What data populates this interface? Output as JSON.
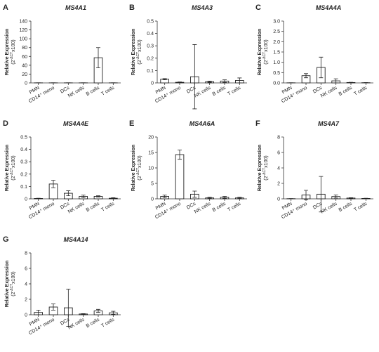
{
  "chart_data": [
    {
      "type": "bar",
      "label": "A",
      "title": "MS4A1",
      "ylabel": "Relative Expression",
      "ylabel_unit": [
        "(2",
        "-ΔCT",
        "x100)"
      ],
      "categories": [
        "PMN",
        "CD14⁺ mono",
        "DCs",
        "NK cells",
        "B cells",
        "T cells"
      ],
      "values": [
        0.2,
        0.2,
        0.2,
        0.2,
        57,
        0.2
      ],
      "errors": [
        0.1,
        0.1,
        0.1,
        0.1,
        23,
        0.1
      ],
      "ylim": [
        0,
        140
      ],
      "yticks": [
        0,
        20,
        40,
        60,
        80,
        100,
        120,
        140
      ]
    },
    {
      "type": "bar",
      "label": "B",
      "title": "MS4A3",
      "ylabel": "Relative Expression",
      "ylabel_unit": [
        "(2",
        "-ΔCT",
        "x100)"
      ],
      "categories": [
        "PMN",
        "CD14⁺ mono",
        "DCs",
        "NK cells",
        "B cells",
        "T cells"
      ],
      "values": [
        0.03,
        0.005,
        0.05,
        0.01,
        0.015,
        0.02
      ],
      "errors": [
        0.005,
        0.003,
        0.26,
        0.005,
        0.01,
        0.02
      ],
      "ylim": [
        0,
        0.5
      ],
      "yticks": [
        0,
        0.1,
        0.2,
        0.3,
        0.4,
        0.5
      ]
    },
    {
      "type": "bar",
      "label": "C",
      "title": "MS4A4A",
      "ylabel": "Relative Expression",
      "ylabel_unit": [
        "(2",
        "-ΔCT",
        "x100)"
      ],
      "categories": [
        "PMN",
        "CD14⁺ mono",
        "DCs",
        "NK cells",
        "B cells",
        "T cells"
      ],
      "values": [
        0.005,
        0.35,
        0.75,
        0.1,
        0.02,
        0.01
      ],
      "errors": [
        0.003,
        0.1,
        0.5,
        0.1,
        0.01,
        0.005
      ],
      "ylim": [
        0,
        3
      ],
      "yticks": [
        {
          "value": 0,
          "label": "0.0"
        },
        0.5,
        {
          "value": 1,
          "label": "1.0"
        },
        1.5,
        {
          "value": 2,
          "label": "2.0"
        },
        2.5,
        {
          "value": 3,
          "label": "3.0"
        }
      ]
    },
    {
      "type": "bar",
      "label": "D",
      "title": "MS4A4E",
      "ylabel": "Relative Expression",
      "ylabel_unit": [
        "(2",
        "-ΔCT",
        "x100)"
      ],
      "categories": [
        "PMN",
        "CD14⁺ mono",
        "DCs",
        "NK cells",
        "B cells",
        "T cells"
      ],
      "values": [
        0.003,
        0.12,
        0.045,
        0.02,
        0.02,
        0.005
      ],
      "errors": [
        0.002,
        0.03,
        0.02,
        0.01,
        0.005,
        0.004
      ],
      "ylim": [
        0,
        0.5
      ],
      "yticks": [
        0,
        0.1,
        0.2,
        0.3,
        0.4,
        0.5
      ]
    },
    {
      "type": "bar",
      "label": "E",
      "title": "MS4A6A",
      "ylabel": "Relative Expression",
      "ylabel_unit": [
        "(2",
        "-ΔCT",
        "x100)"
      ],
      "categories": [
        "PMN",
        "CD14⁺ mono",
        "DCs",
        "NK cells",
        "B cells",
        "T cells"
      ],
      "values": [
        0.8,
        14.3,
        1.5,
        0.3,
        0.5,
        0.3
      ],
      "errors": [
        0.4,
        1.5,
        1,
        0.2,
        0.3,
        0.2
      ],
      "ylim": [
        0,
        20
      ],
      "yticks": [
        0,
        5,
        10,
        15,
        20
      ]
    },
    {
      "type": "bar",
      "label": "F",
      "title": "MS4A7",
      "ylabel": "Relative Expression",
      "ylabel_unit": [
        "(2",
        "-ΔCT",
        "x100)"
      ],
      "categories": [
        "PMN",
        "CD14⁺ mono",
        "DCs",
        "NK cells",
        "B cells",
        "T cells"
      ],
      "values": [
        0.02,
        0.5,
        0.6,
        0.3,
        0.1,
        0.05
      ],
      "errors": [
        0.01,
        0.6,
        2.3,
        0.2,
        0.05,
        0.03
      ],
      "ylim": [
        0,
        8
      ],
      "yticks": [
        0,
        2,
        4,
        6,
        8
      ]
    },
    {
      "type": "bar",
      "label": "G",
      "title": "MS4A14",
      "ylabel": "Relative Expression",
      "ylabel_unit": [
        "(2",
        "-ΔCT",
        "x100)"
      ],
      "categories": [
        "PMN",
        "CD14⁺ mono",
        "DCs",
        "NK cells",
        "B cells",
        "T cells"
      ],
      "values": [
        0.3,
        1.0,
        0.9,
        0.1,
        0.5,
        0.25
      ],
      "errors": [
        0.3,
        0.4,
        2.4,
        0.05,
        0.2,
        0.2
      ],
      "ylim": [
        0,
        8
      ],
      "yticks": [
        0,
        2,
        4,
        6,
        8
      ]
    }
  ]
}
